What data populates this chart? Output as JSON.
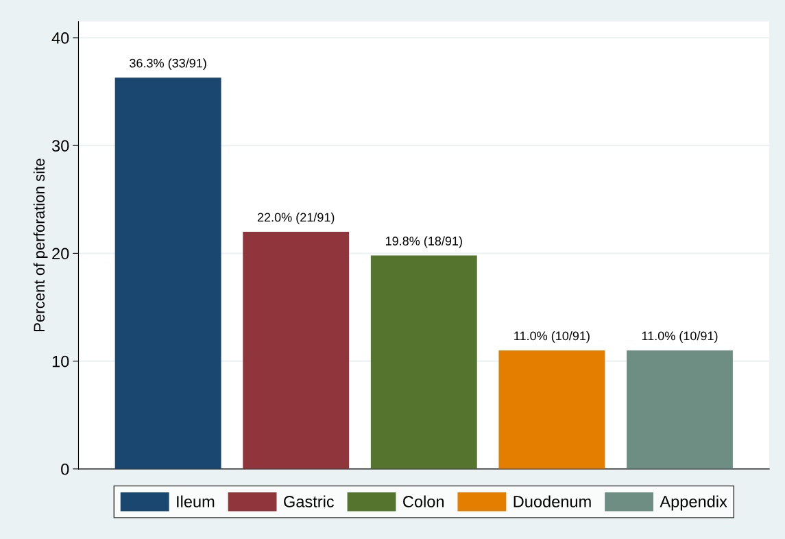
{
  "chart_data": {
    "type": "bar",
    "ylabel": "Percent of perforation site",
    "categories": [
      null,
      null,
      null,
      null,
      null
    ],
    "series": [
      {
        "name": "Ileum",
        "color": "#1a476f",
        "values": [
          36.3,
          null,
          null,
          null,
          null
        ],
        "value_labels": [
          "36.3% (33/91)",
          null,
          null,
          null,
          null
        ]
      },
      {
        "name": "Gastric",
        "color": "#90353b",
        "values": [
          null,
          22.0,
          null,
          null,
          null
        ],
        "value_labels": [
          null,
          "22.0% (21/91)",
          null,
          null,
          null
        ]
      },
      {
        "name": "Colon",
        "color": "#55752f",
        "values": [
          null,
          null,
          19.8,
          null,
          null
        ],
        "value_labels": [
          null,
          null,
          "19.8% (18/91)",
          null,
          null
        ]
      },
      {
        "name": "Duodenum",
        "color": "#e37e00",
        "values": [
          null,
          null,
          null,
          11.0,
          null
        ],
        "value_labels": [
          null,
          null,
          null,
          "11.0% (10/91)",
          null
        ]
      },
      {
        "name": "Appendix",
        "color": "#6e8e84",
        "values": [
          null,
          null,
          null,
          null,
          11.0
        ],
        "value_labels": [
          null,
          null,
          null,
          null,
          "11.0% (10/91)"
        ]
      }
    ],
    "ylim": [
      0,
      41.5
    ],
    "yticks": [
      0,
      10,
      20,
      30,
      40
    ],
    "grid": "y",
    "legend": "bottom",
    "tick_labels": "y"
  }
}
